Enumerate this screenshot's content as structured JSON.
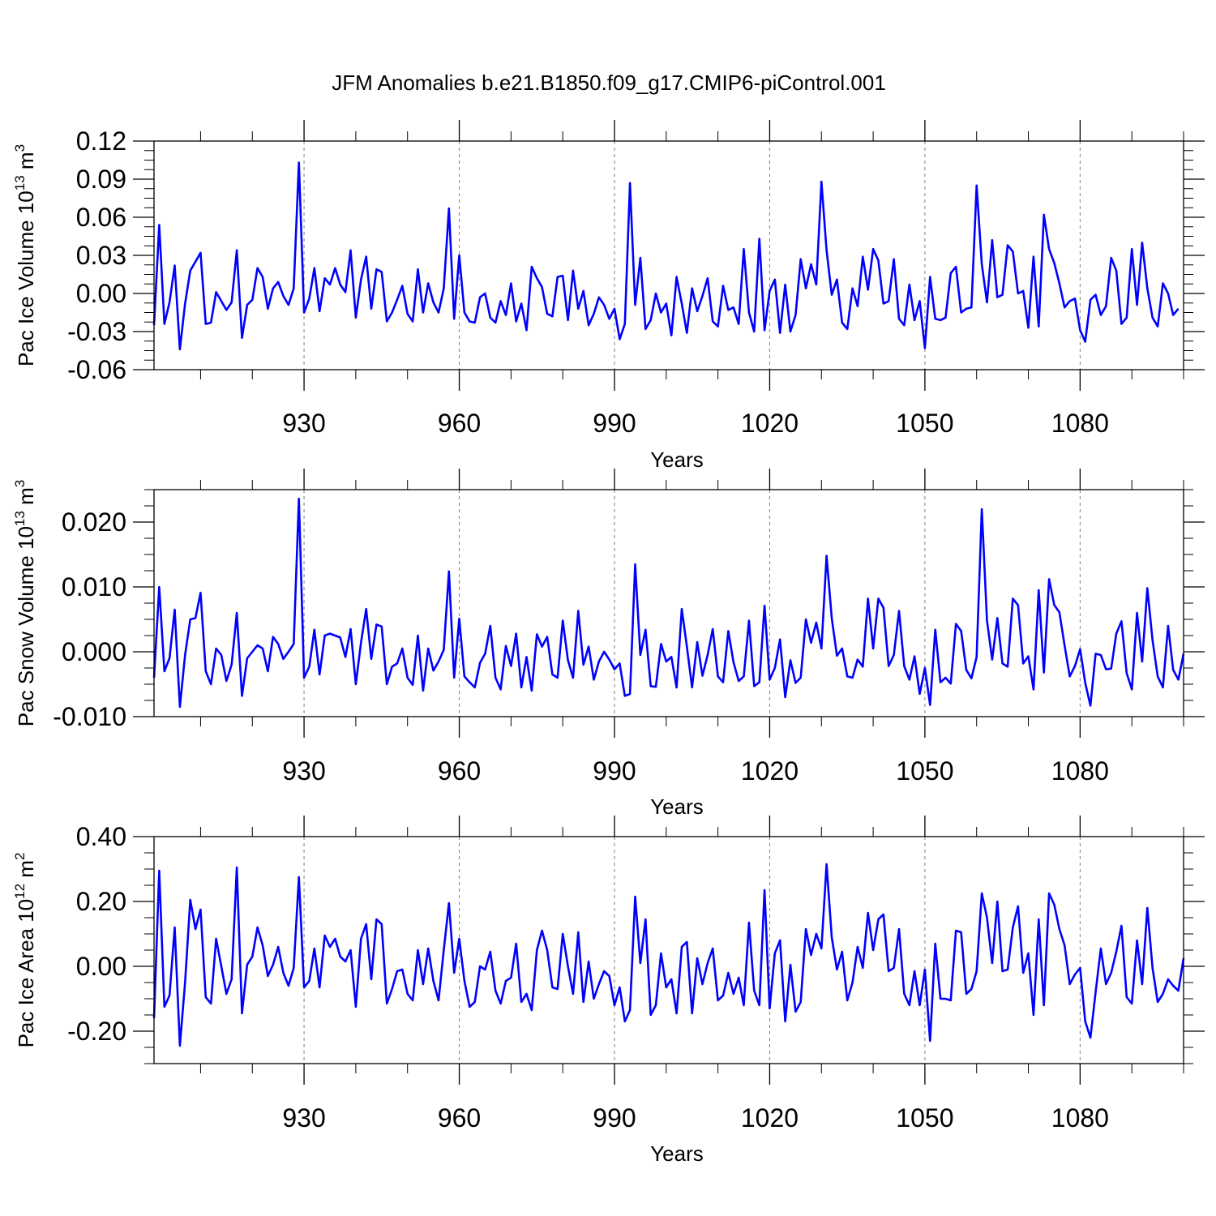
{
  "title": "JFM Anomalies b.e21.B1850.f09_g17.CMIP6-piControl.001",
  "colors": {
    "line": "#0000ff",
    "axis": "#000000",
    "grid": "#808080"
  },
  "panels": [
    {
      "ylabel_main": "Pac Ice Volume 10",
      "ylabel_exp": "13",
      "ylabel_unit": " m",
      "ylabel_unit_exp": "3",
      "xlabel": "Years",
      "y_tick_labels": [
        "-0.06",
        "-0.03",
        "0.00",
        "0.03",
        "0.06",
        "0.09",
        "0.12"
      ],
      "x_tick_labels": [
        "930",
        "960",
        "990",
        "1020",
        "1050",
        "1080"
      ]
    },
    {
      "ylabel_main": "Pac Snow Volume 10",
      "ylabel_exp": "13",
      "ylabel_unit": " m",
      "ylabel_unit_exp": "3",
      "xlabel": "Years",
      "y_tick_labels": [
        "-0.010",
        "0.000",
        "0.010",
        "0.020"
      ],
      "x_tick_labels": [
        "930",
        "960",
        "990",
        "1020",
        "1050",
        "1080"
      ]
    },
    {
      "ylabel_main": "Pac Ice Area 10",
      "ylabel_exp": "12",
      "ylabel_unit": " m",
      "ylabel_unit_exp": "2",
      "xlabel": "Years",
      "y_tick_labels": [
        "-0.20",
        "0.00",
        "0.20",
        "0.40"
      ],
      "x_tick_labels": [
        "930",
        "960",
        "990",
        "1020",
        "1050",
        "1080"
      ]
    }
  ],
  "chart_data": [
    {
      "type": "line",
      "title": "JFM Anomalies b.e21.B1850.f09_g17.CMIP6-piControl.001",
      "xlabel": "Years",
      "ylabel": "Pac Ice Volume 10^13 m^3",
      "x_start": 901,
      "x_step": 1,
      "xlim": [
        901,
        1100
      ],
      "ylim": [
        -0.06,
        0.12
      ],
      "xticks": [
        930,
        960,
        990,
        1020,
        1050,
        1080
      ],
      "yticks": [
        -0.06,
        -0.03,
        0.0,
        0.03,
        0.06,
        0.09,
        0.12
      ],
      "grid": "x-dashed",
      "values": [
        -0.025,
        0.054,
        -0.024,
        -0.007,
        0.022,
        -0.044,
        -0.008,
        0.018,
        0.025,
        0.032,
        -0.024,
        -0.023,
        0.001,
        -0.006,
        -0.013,
        -0.007,
        0.034,
        -0.035,
        -0.009,
        -0.005,
        0.02,
        0.013,
        -0.012,
        0.004,
        0.009,
        -0.002,
        -0.009,
        0.004,
        0.103,
        -0.015,
        -0.004,
        0.02,
        -0.014,
        0.012,
        0.007,
        0.02,
        0.007,
        0.001,
        0.034,
        -0.019,
        0.011,
        0.029,
        -0.012,
        0.019,
        0.017,
        -0.022,
        -0.015,
        -0.005,
        0.006,
        -0.016,
        -0.022,
        0.019,
        -0.015,
        0.008,
        -0.007,
        -0.015,
        0.004,
        0.067,
        -0.02,
        0.03,
        -0.015,
        -0.022,
        -0.023,
        -0.003,
        0.0,
        -0.019,
        -0.023,
        -0.006,
        -0.017,
        0.008,
        -0.022,
        -0.008,
        -0.029,
        0.021,
        0.012,
        0.005,
        -0.016,
        -0.018,
        0.013,
        0.014,
        -0.021,
        0.018,
        -0.012,
        0.002,
        -0.025,
        -0.016,
        -0.003,
        -0.009,
        -0.02,
        -0.012,
        -0.036,
        -0.024,
        0.087,
        -0.009,
        0.028,
        -0.028,
        -0.021,
        0.0,
        -0.015,
        -0.008,
        -0.033,
        0.013,
        -0.008,
        -0.031,
        0.004,
        -0.014,
        -0.002,
        0.012,
        -0.022,
        -0.026,
        0.006,
        -0.013,
        -0.011,
        -0.024,
        0.035,
        -0.015,
        -0.03,
        0.043,
        -0.029,
        0.002,
        0.011,
        -0.031,
        0.007,
        -0.03,
        -0.017,
        0.027,
        0.004,
        0.023,
        0.007,
        0.088,
        0.034,
        -0.001,
        0.011,
        -0.023,
        -0.028,
        0.004,
        -0.01,
        0.029,
        0.003,
        0.035,
        0.026,
        -0.008,
        -0.006,
        0.027,
        -0.02,
        -0.025,
        0.007,
        -0.021,
        -0.006,
        -0.043,
        0.013,
        -0.02,
        -0.021,
        -0.019,
        0.016,
        0.021,
        -0.015,
        -0.012,
        -0.011,
        0.085,
        0.023,
        -0.007,
        0.042,
        -0.003,
        -0.001,
        0.038,
        0.033,
        0.0,
        0.002,
        -0.027,
        0.029,
        -0.026,
        0.062,
        0.035,
        0.024,
        0.008,
        -0.011,
        -0.006,
        -0.004,
        -0.029,
        -0.038,
        -0.005,
        -0.001,
        -0.017,
        -0.01,
        0.028,
        0.018,
        -0.024,
        -0.019,
        0.035,
        -0.009,
        0.04,
        0.004,
        -0.019,
        -0.026,
        0.008,
        0.0,
        -0.017,
        -0.012
      ]
    },
    {
      "type": "line",
      "title": "",
      "xlabel": "Years",
      "ylabel": "Pac Snow Volume 10^13 m^3",
      "x_start": 901,
      "x_step": 1,
      "xlim": [
        901,
        1100
      ],
      "ylim": [
        -0.01,
        0.025
      ],
      "xticks": [
        930,
        960,
        990,
        1020,
        1050,
        1080
      ],
      "yticks": [
        -0.01,
        0.0,
        0.01,
        0.02
      ],
      "grid": "x-dashed",
      "values": [
        -0.004,
        0.01,
        -0.003,
        -0.001,
        0.0065,
        -0.0085,
        -0.0005,
        0.005,
        0.0052,
        0.0091,
        -0.003,
        -0.005,
        0.0005,
        -0.0005,
        -0.0045,
        -0.002,
        0.006,
        -0.0068,
        -0.001,
        0.0,
        0.001,
        0.0005,
        -0.003,
        0.0023,
        0.0012,
        -0.0011,
        0.0,
        0.0012,
        0.0236,
        -0.004,
        -0.0023,
        0.0034,
        -0.0035,
        0.0025,
        0.0028,
        0.0025,
        0.0022,
        -0.0008,
        0.0035,
        -0.005,
        0.0014,
        0.0066,
        -0.0011,
        0.0042,
        0.0039,
        -0.005,
        -0.0023,
        -0.0018,
        0.0005,
        -0.004,
        -0.0051,
        0.0025,
        -0.006,
        0.0005,
        -0.0029,
        -0.0015,
        0.0003,
        0.0124,
        -0.004,
        0.0051,
        -0.0038,
        -0.0047,
        -0.0055,
        -0.0017,
        -0.0003,
        0.004,
        -0.004,
        -0.0058,
        0.0009,
        -0.0022,
        0.0028,
        -0.0055,
        -0.0008,
        -0.006,
        0.0027,
        0.0008,
        0.0023,
        -0.0035,
        -0.004,
        0.0048,
        -0.0013,
        -0.004,
        0.0063,
        -0.002,
        0.0008,
        -0.0043,
        -0.0015,
        0.0,
        -0.0012,
        -0.0027,
        -0.0018,
        -0.0068,
        -0.0065,
        0.0135,
        -0.0005,
        0.0034,
        -0.0053,
        -0.0054,
        0.0012,
        -0.0015,
        -0.0008,
        -0.0055,
        0.0066,
        0.0008,
        -0.0055,
        0.0015,
        -0.0037,
        -0.0005,
        0.0035,
        -0.0038,
        -0.0047,
        0.0032,
        -0.0016,
        -0.0045,
        -0.0038,
        0.0048,
        -0.0053,
        -0.0047,
        0.0071,
        -0.0043,
        -0.0025,
        0.0019,
        -0.007,
        -0.0013,
        -0.0048,
        -0.004,
        0.005,
        0.0014,
        0.0045,
        0.0005,
        0.0148,
        0.0052,
        -0.0006,
        0.0005,
        -0.0038,
        -0.004,
        -0.0012,
        -0.0023,
        0.0082,
        0.0005,
        0.0082,
        0.0068,
        -0.0022,
        -0.0005,
        0.0063,
        -0.0022,
        -0.0043,
        -0.0007,
        -0.0065,
        -0.0025,
        -0.0082,
        0.0034,
        -0.0047,
        -0.004,
        -0.0049,
        0.0043,
        0.0032,
        -0.0028,
        -0.0041,
        -0.0008,
        0.022,
        0.0048,
        -0.0012,
        0.0052,
        -0.0018,
        -0.0023,
        0.0082,
        0.0072,
        -0.0018,
        -0.0007,
        -0.0058,
        0.0095,
        -0.0032,
        0.0112,
        0.0072,
        0.0061,
        0.001,
        -0.0038,
        -0.0022,
        0.0004,
        -0.0048,
        -0.0083,
        -0.0003,
        -0.0005,
        -0.0027,
        -0.0026,
        0.0028,
        0.0047,
        -0.0033,
        -0.0058,
        0.006,
        -0.0015,
        0.0098,
        0.0018,
        -0.0038,
        -0.0055,
        0.004,
        -0.0028,
        -0.0043,
        -0.0003
      ]
    },
    {
      "type": "line",
      "title": "",
      "xlabel": "Years",
      "ylabel": "Pac Ice Area 10^12 m^2",
      "x_start": 901,
      "x_step": 1,
      "xlim": [
        901,
        1100
      ],
      "ylim": [
        -0.3,
        0.4
      ],
      "xticks": [
        930,
        960,
        990,
        1020,
        1050,
        1080
      ],
      "yticks": [
        -0.2,
        0.0,
        0.2,
        0.4
      ],
      "grid": "x-dashed",
      "values": [
        -0.16,
        0.295,
        -0.125,
        -0.09,
        0.12,
        -0.245,
        -0.05,
        0.205,
        0.115,
        0.175,
        -0.095,
        -0.115,
        0.085,
        0.0,
        -0.085,
        -0.04,
        0.305,
        -0.145,
        0.005,
        0.03,
        0.12,
        0.065,
        -0.03,
        0.005,
        0.06,
        -0.02,
        -0.06,
        -0.005,
        0.275,
        -0.065,
        -0.045,
        0.055,
        -0.065,
        0.095,
        0.06,
        0.085,
        0.03,
        0.015,
        0.05,
        -0.125,
        0.085,
        0.13,
        -0.04,
        0.145,
        0.13,
        -0.115,
        -0.07,
        -0.015,
        -0.01,
        -0.085,
        -0.105,
        0.05,
        -0.055,
        0.055,
        -0.045,
        -0.105,
        0.05,
        0.195,
        -0.02,
        0.085,
        -0.045,
        -0.125,
        -0.11,
        -0.0,
        -0.01,
        0.045,
        -0.075,
        -0.115,
        -0.045,
        -0.035,
        0.07,
        -0.11,
        -0.085,
        -0.135,
        0.05,
        0.11,
        0.05,
        -0.065,
        -0.07,
        0.1,
        0.0,
        -0.085,
        0.105,
        -0.11,
        0.015,
        -0.1,
        -0.055,
        -0.015,
        -0.03,
        -0.12,
        -0.065,
        -0.17,
        -0.135,
        0.215,
        0.01,
        0.145,
        -0.15,
        -0.12,
        0.04,
        -0.065,
        -0.04,
        -0.145,
        0.06,
        0.075,
        -0.145,
        0.025,
        -0.055,
        0.01,
        0.055,
        -0.105,
        -0.09,
        -0.02,
        -0.085,
        -0.035,
        -0.12,
        0.135,
        -0.075,
        -0.12,
        0.235,
        -0.13,
        0.04,
        0.08,
        -0.17,
        0.005,
        -0.14,
        -0.11,
        0.115,
        0.035,
        0.1,
        0.055,
        0.315,
        0.09,
        -0.01,
        0.045,
        -0.105,
        -0.05,
        0.06,
        -0.005,
        0.165,
        0.05,
        0.145,
        0.16,
        -0.015,
        -0.005,
        0.115,
        -0.085,
        -0.12,
        -0.015,
        -0.12,
        -0.01,
        -0.23,
        0.07,
        -0.1,
        -0.1,
        -0.105,
        0.11,
        0.105,
        -0.085,
        -0.07,
        -0.015,
        0.225,
        0.15,
        0.01,
        0.2,
        -0.015,
        -0.01,
        0.12,
        0.185,
        -0.02,
        0.04,
        -0.15,
        0.145,
        -0.12,
        0.225,
        0.19,
        0.115,
        0.065,
        -0.055,
        -0.025,
        -0.005,
        -0.17,
        -0.22,
        -0.08,
        0.055,
        -0.055,
        -0.02,
        0.045,
        0.125,
        -0.095,
        -0.115,
        0.08,
        -0.055,
        0.18,
        -0.005,
        -0.11,
        -0.085,
        -0.04,
        -0.06,
        -0.075,
        0.025
      ]
    }
  ]
}
